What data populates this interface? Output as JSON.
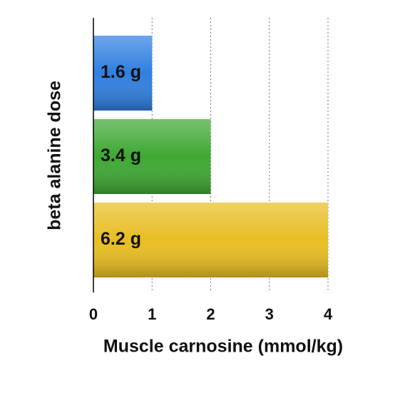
{
  "chart_data": {
    "type": "bar",
    "orientation": "horizontal",
    "x_label": "Muscle carnosine (mmol/kg)",
    "y_label": "beta alanine dose",
    "categories": [
      "1.6 g",
      "3.4 g",
      "6.2 g"
    ],
    "values": [
      1,
      2,
      4
    ],
    "colors": [
      "#2f7fe0",
      "#3ea832",
      "#e8bd22"
    ],
    "xlim": [
      0,
      4
    ],
    "xticks": [
      0,
      1,
      2,
      3,
      4
    ],
    "grid": true
  }
}
